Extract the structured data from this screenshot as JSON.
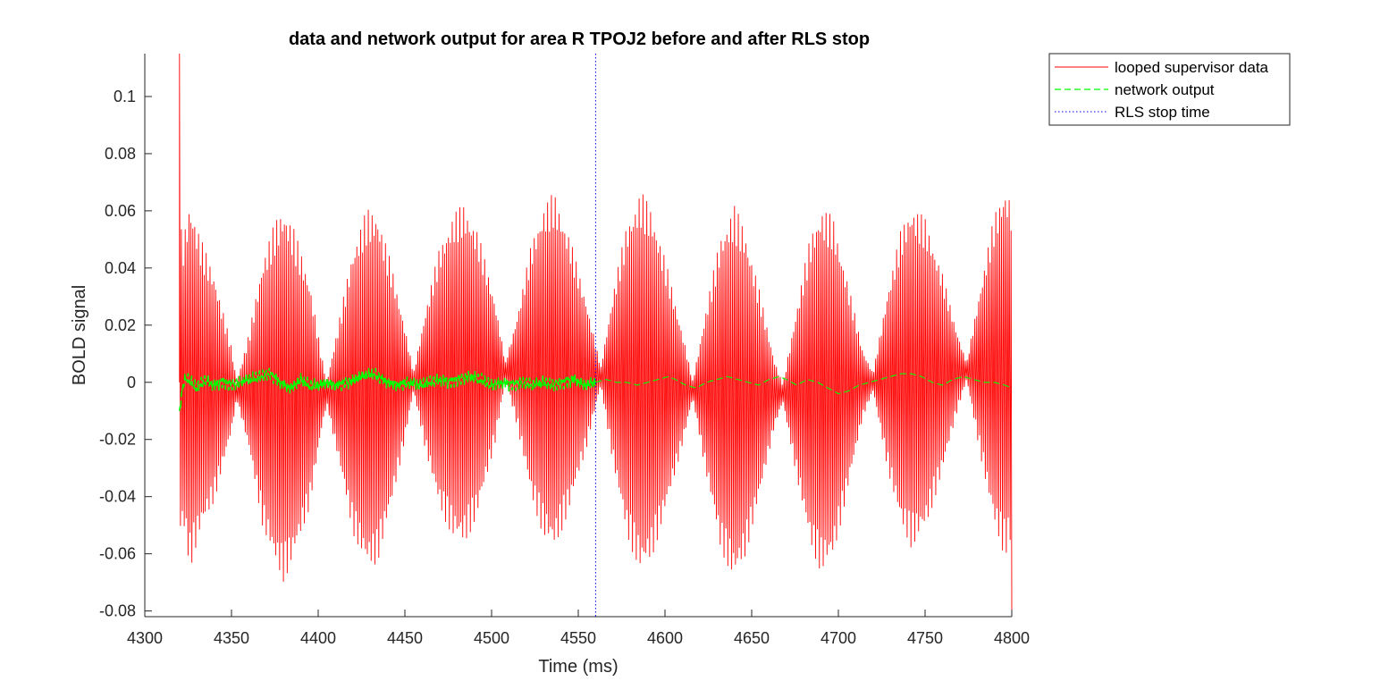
{
  "chart_data": {
    "type": "line",
    "title": "data and network output for area R TPOJ2 before and after RLS stop",
    "xlabel": "Time (ms)",
    "ylabel": "BOLD signal",
    "xlim": [
      4300,
      4800
    ],
    "ylim": [
      -0.082,
      0.115
    ],
    "x_ticks": [
      4300,
      4350,
      4400,
      4450,
      4500,
      4550,
      4600,
      4650,
      4700,
      4750,
      4800
    ],
    "y_ticks": [
      -0.08,
      -0.06,
      -0.04,
      -0.02,
      0,
      0.02,
      0.04,
      0.06,
      0.08,
      0.1
    ],
    "x_tick_labels": [
      "4300",
      "4350",
      "4400",
      "4450",
      "4500",
      "4550",
      "4600",
      "4650",
      "4700",
      "4750",
      "4800"
    ],
    "y_tick_labels": [
      "-0.08",
      "-0.06",
      "-0.04",
      "-0.02",
      "0",
      "0.02",
      "0.04",
      "0.06",
      "0.08",
      "0.1"
    ],
    "grid": false,
    "legend_position": "outside-top-right",
    "series": [
      {
        "name": "looped supervisor data",
        "color": "#ff0000",
        "style": "solid",
        "x_start": 4320,
        "x_end": 4800,
        "carrier_period_ms": 1.1,
        "envelope_nodes": [
          [
            4320,
            0.058
          ],
          [
            4322,
            0.05
          ],
          [
            4326,
            0.065
          ],
          [
            4332,
            0.052
          ],
          [
            4340,
            0.04
          ],
          [
            4350,
            0.015
          ],
          [
            4353,
            0.003
          ],
          [
            4360,
            0.02
          ],
          [
            4368,
            0.047
          ],
          [
            4375,
            0.06
          ],
          [
            4380,
            0.066
          ],
          [
            4386,
            0.058
          ],
          [
            4395,
            0.04
          ],
          [
            4402,
            0.013
          ],
          [
            4405,
            0.004
          ],
          [
            4412,
            0.025
          ],
          [
            4420,
            0.05
          ],
          [
            4428,
            0.063
          ],
          [
            4434,
            0.062
          ],
          [
            4442,
            0.043
          ],
          [
            4450,
            0.02
          ],
          [
            4455,
            0.003
          ],
          [
            4462,
            0.025
          ],
          [
            4470,
            0.046
          ],
          [
            4478,
            0.057
          ],
          [
            4484,
            0.06
          ],
          [
            4492,
            0.05
          ],
          [
            4502,
            0.025
          ],
          [
            4508,
            0.003
          ],
          [
            4515,
            0.02
          ],
          [
            4523,
            0.045
          ],
          [
            4530,
            0.058
          ],
          [
            4536,
            0.063
          ],
          [
            4545,
            0.048
          ],
          [
            4555,
            0.025
          ],
          [
            4563,
            0.003
          ],
          [
            4570,
            0.03
          ],
          [
            4578,
            0.055
          ],
          [
            4586,
            0.067
          ],
          [
            4592,
            0.062
          ],
          [
            4600,
            0.045
          ],
          [
            4610,
            0.02
          ],
          [
            4616,
            0.003
          ],
          [
            4624,
            0.03
          ],
          [
            4632,
            0.055
          ],
          [
            4640,
            0.066
          ],
          [
            4646,
            0.058
          ],
          [
            4655,
            0.035
          ],
          [
            4663,
            0.012
          ],
          [
            4668,
            0.003
          ],
          [
            4676,
            0.03
          ],
          [
            4684,
            0.055
          ],
          [
            4690,
            0.064
          ],
          [
            4697,
            0.06
          ],
          [
            4706,
            0.035
          ],
          [
            4714,
            0.012
          ],
          [
            4720,
            0.003
          ],
          [
            4728,
            0.03
          ],
          [
            4736,
            0.052
          ],
          [
            4742,
            0.06
          ],
          [
            4750,
            0.055
          ],
          [
            4760,
            0.035
          ],
          [
            4768,
            0.015
          ],
          [
            4774,
            0.003
          ],
          [
            4782,
            0.03
          ],
          [
            4790,
            0.055
          ],
          [
            4796,
            0.065
          ],
          [
            4800,
            0.06
          ]
        ],
        "annotated_points": [
          [
            4320,
            0.115
          ],
          [
            4800,
            -0.082
          ]
        ]
      },
      {
        "name": "network output",
        "color": "#00ff00",
        "style": "dashed",
        "x_start": 4320,
        "x_end": 4800,
        "points": [
          [
            4320,
            -0.01
          ],
          [
            4321,
            -0.006
          ],
          [
            4322,
            -0.001
          ],
          [
            4324,
            0.002
          ],
          [
            4327,
            0.0
          ],
          [
            4330,
            -0.002
          ],
          [
            4335,
            0.001
          ],
          [
            4340,
            -0.001
          ],
          [
            4345,
            0.0
          ],
          [
            4350,
            -0.001
          ],
          [
            4355,
            0.0
          ],
          [
            4360,
            0.001
          ],
          [
            4366,
            0.002
          ],
          [
            4372,
            0.003
          ],
          [
            4378,
            0.0
          ],
          [
            4384,
            -0.002
          ],
          [
            4390,
            0.001
          ],
          [
            4395,
            -0.001
          ],
          [
            4400,
            -0.001
          ],
          [
            4405,
            0.0
          ],
          [
            4410,
            -0.001
          ],
          [
            4418,
            0.0
          ],
          [
            4425,
            0.002
          ],
          [
            4432,
            0.003
          ],
          [
            4440,
            0.0
          ],
          [
            4446,
            -0.001
          ],
          [
            4452,
            0.0
          ],
          [
            4458,
            -0.001
          ],
          [
            4464,
            0.0
          ],
          [
            4470,
            0.001
          ],
          [
            4476,
            0.0
          ],
          [
            4482,
            0.001
          ],
          [
            4488,
            0.002
          ],
          [
            4494,
            0.001
          ],
          [
            4500,
            -0.001
          ],
          [
            4506,
            0.0
          ],
          [
            4512,
            -0.001
          ],
          [
            4518,
            0.0
          ],
          [
            4524,
            -0.001
          ],
          [
            4530,
            0.0
          ],
          [
            4536,
            -0.001
          ],
          [
            4542,
            0.0
          ],
          [
            4548,
            0.001
          ],
          [
            4554,
            -0.001
          ],
          [
            4560,
            0.0
          ],
          [
            4566,
            0.001
          ],
          [
            4572,
            0.0
          ],
          [
            4578,
            0.0
          ],
          [
            4584,
            -0.001
          ],
          [
            4590,
            0.0
          ],
          [
            4596,
            0.001
          ],
          [
            4602,
            0.002
          ],
          [
            4606,
            0.001
          ],
          [
            4612,
            -0.001
          ],
          [
            4618,
            -0.002
          ],
          [
            4624,
            0.0
          ],
          [
            4630,
            0.001
          ],
          [
            4636,
            0.002
          ],
          [
            4642,
            0.001
          ],
          [
            4648,
            0.0
          ],
          [
            4654,
            -0.001
          ],
          [
            4660,
            0.001
          ],
          [
            4666,
            0.002
          ],
          [
            4670,
            0.001
          ],
          [
            4676,
            -0.001
          ],
          [
            4682,
            0.001
          ],
          [
            4688,
            0.0
          ],
          [
            4694,
            -0.002
          ],
          [
            4700,
            -0.004
          ],
          [
            4706,
            -0.003
          ],
          [
            4712,
            -0.001
          ],
          [
            4718,
            0.0
          ],
          [
            4724,
            0.001
          ],
          [
            4730,
            0.002
          ],
          [
            4736,
            0.003
          ],
          [
            4742,
            0.003
          ],
          [
            4748,
            0.002
          ],
          [
            4754,
            0.0
          ],
          [
            4760,
            -0.001
          ],
          [
            4766,
            0.001
          ],
          [
            4772,
            0.002
          ],
          [
            4778,
            0.001
          ],
          [
            4784,
            0.0
          ],
          [
            4790,
            0.0
          ],
          [
            4796,
            -0.001
          ],
          [
            4800,
            -0.002
          ]
        ]
      },
      {
        "name": "RLS stop time",
        "color": "#0000ff",
        "style": "dotted",
        "x_value": 4560
      }
    ]
  }
}
